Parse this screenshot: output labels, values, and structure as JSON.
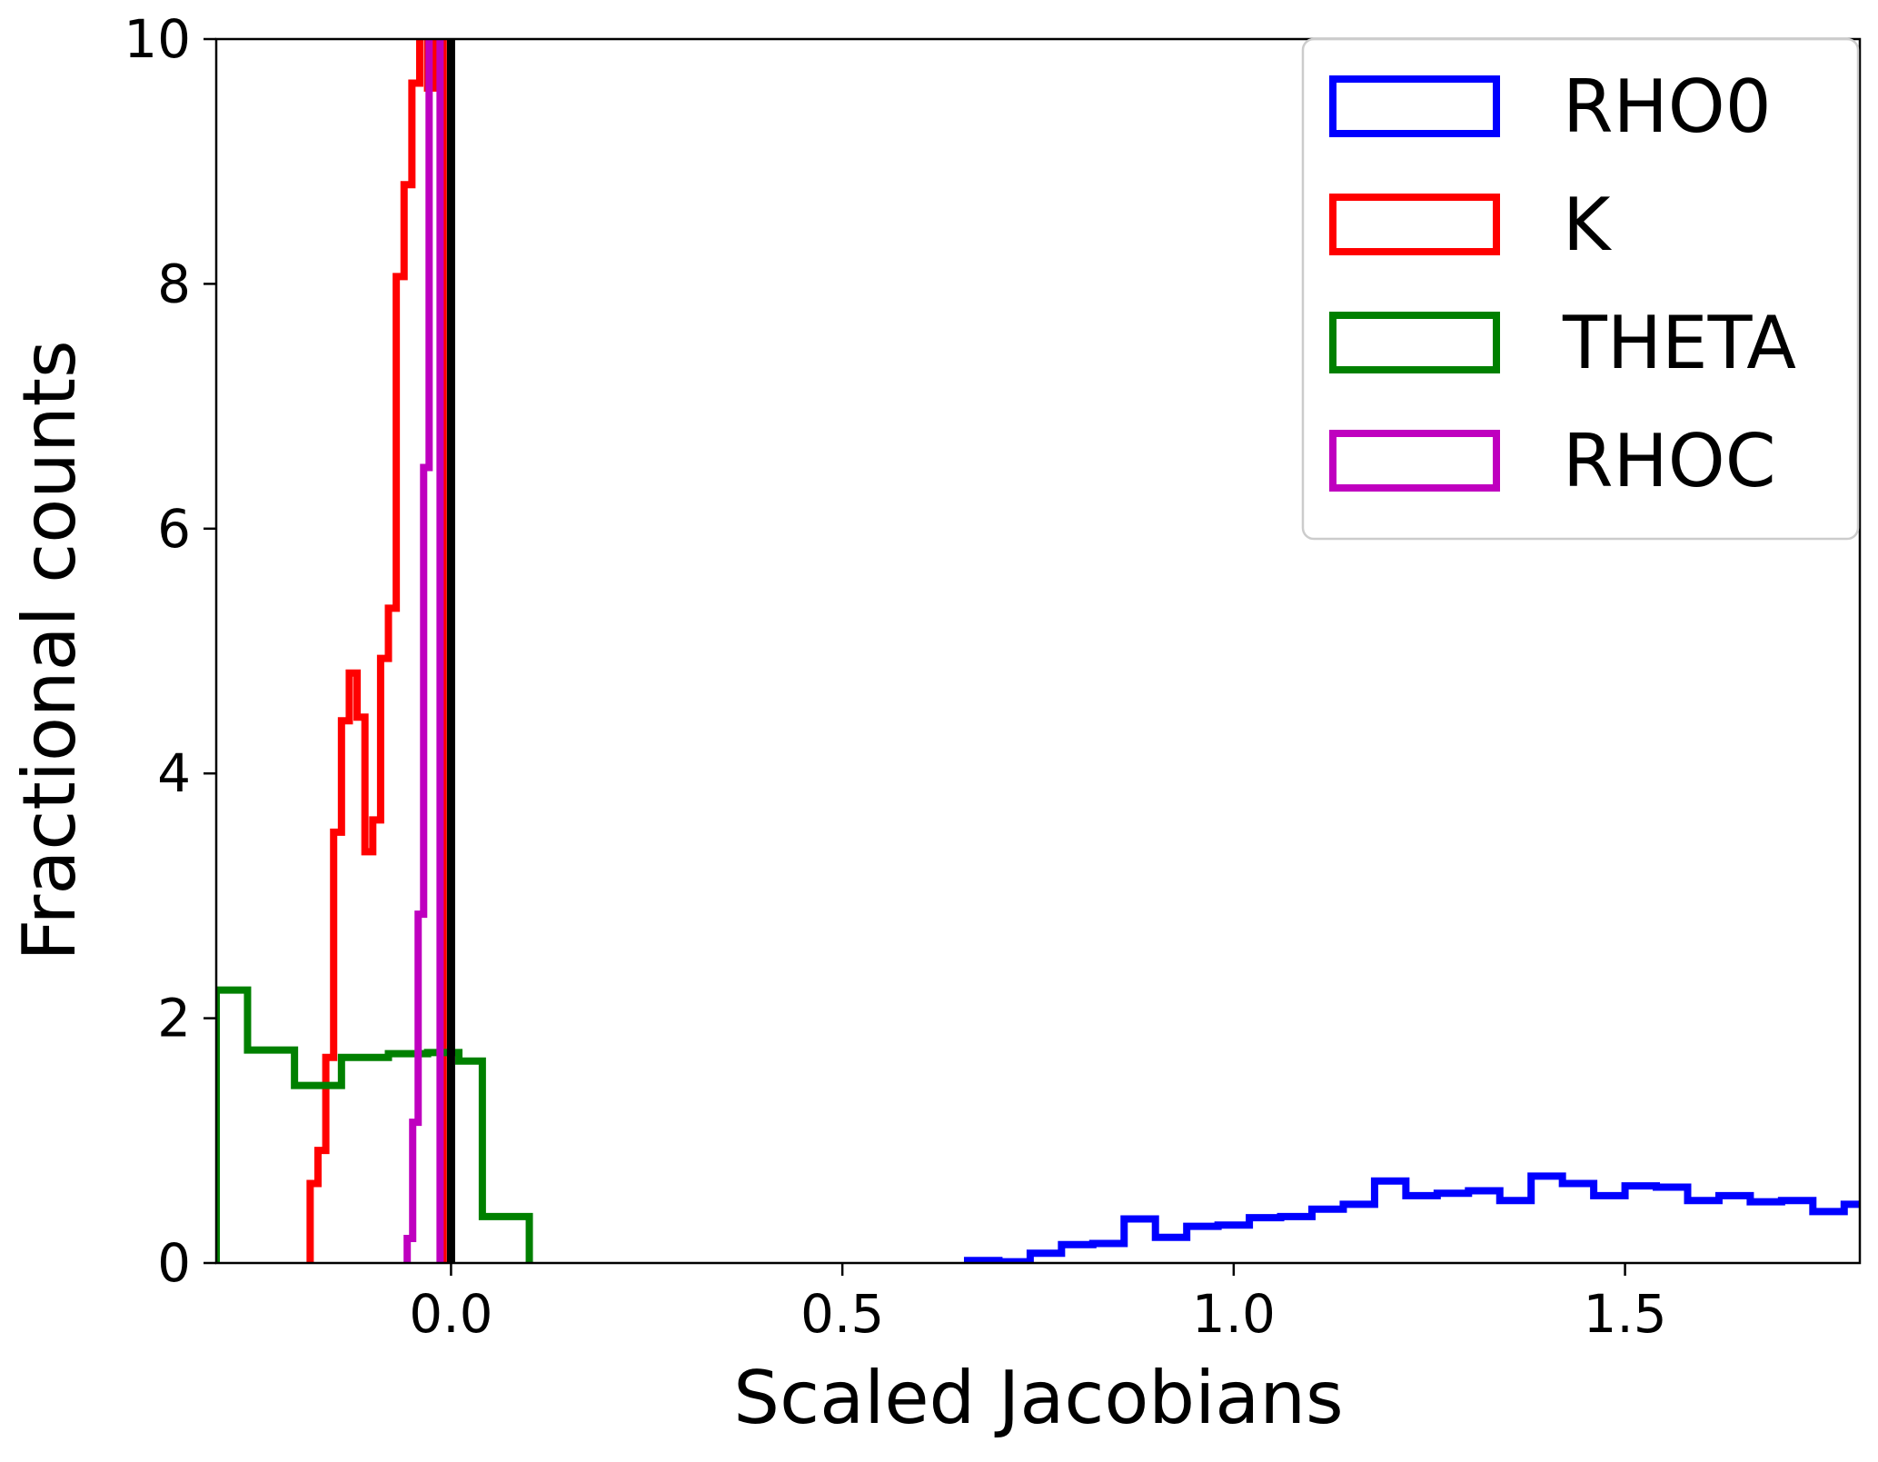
{
  "chart_data": {
    "type": "histogram",
    "xlabel": "Scaled Jacobians",
    "ylabel": "Fractional counts",
    "xlim": [
      -0.3,
      1.8
    ],
    "ylim": [
      0,
      10
    ],
    "xticks": [
      {
        "value": 0.0,
        "label": "0.0"
      },
      {
        "value": 0.5,
        "label": "0.5"
      },
      {
        "value": 1.0,
        "label": "1.0"
      },
      {
        "value": 1.5,
        "label": "1.5"
      }
    ],
    "yticks": [
      {
        "value": 0,
        "label": "0"
      },
      {
        "value": 2,
        "label": "2"
      },
      {
        "value": 4,
        "label": "4"
      },
      {
        "value": 6,
        "label": "6"
      },
      {
        "value": 8,
        "label": "8"
      },
      {
        "value": 10,
        "label": "10"
      }
    ],
    "grid": false,
    "legend_position": "top-right",
    "vertical_line": {
      "x": 0.0,
      "color": "#000000"
    },
    "series": [
      {
        "name": "RHO0",
        "color": "#0000ff",
        "edges": [
          0.66,
          0.7,
          0.74,
          0.78,
          0.82,
          0.86,
          0.9,
          0.94,
          0.98,
          1.02,
          1.06,
          1.1,
          1.14,
          1.18,
          1.22,
          1.26,
          1.3,
          1.34,
          1.38,
          1.42,
          1.46,
          1.5,
          1.54,
          1.58,
          1.62,
          1.66,
          1.7,
          1.74,
          1.78,
          1.82
        ],
        "counts": [
          0.02,
          0.01,
          0.08,
          0.15,
          0.16,
          0.36,
          0.21,
          0.3,
          0.31,
          0.37,
          0.38,
          0.44,
          0.48,
          0.67,
          0.55,
          0.57,
          0.59,
          0.51,
          0.71,
          0.65,
          0.55,
          0.63,
          0.62,
          0.51,
          0.55,
          0.5,
          0.51,
          0.42,
          0.48
        ]
      },
      {
        "name": "K",
        "color": "#ff0000",
        "edges": [
          -0.18,
          -0.17,
          -0.16,
          -0.15,
          -0.14,
          -0.13,
          -0.12,
          -0.11,
          -0.1,
          -0.09,
          -0.08,
          -0.07,
          -0.06,
          -0.05,
          -0.04,
          -0.03,
          -0.02,
          -0.01
        ],
        "counts": [
          0.65,
          0.92,
          1.68,
          3.52,
          4.43,
          4.82,
          4.46,
          3.36,
          3.62,
          4.94,
          5.35,
          8.06,
          8.81,
          9.64,
          10.8,
          9.6,
          10.6
        ]
      },
      {
        "name": "THETA",
        "color": "#008000",
        "edges": [
          -0.3,
          -0.26,
          -0.2,
          -0.14,
          -0.08,
          -0.03,
          0.01,
          0.04,
          0.1
        ],
        "counts": [
          2.23,
          1.74,
          1.45,
          1.68,
          1.71,
          1.72,
          1.65,
          0.38
        ]
      },
      {
        "name": "RHOC",
        "color": "#bf00bf",
        "edges": [
          -0.056,
          -0.049,
          -0.042,
          -0.035,
          -0.028,
          -0.021,
          -0.014
        ],
        "counts": [
          0.2,
          1.15,
          2.85,
          6.5,
          10.8,
          10.8
        ]
      }
    ]
  }
}
